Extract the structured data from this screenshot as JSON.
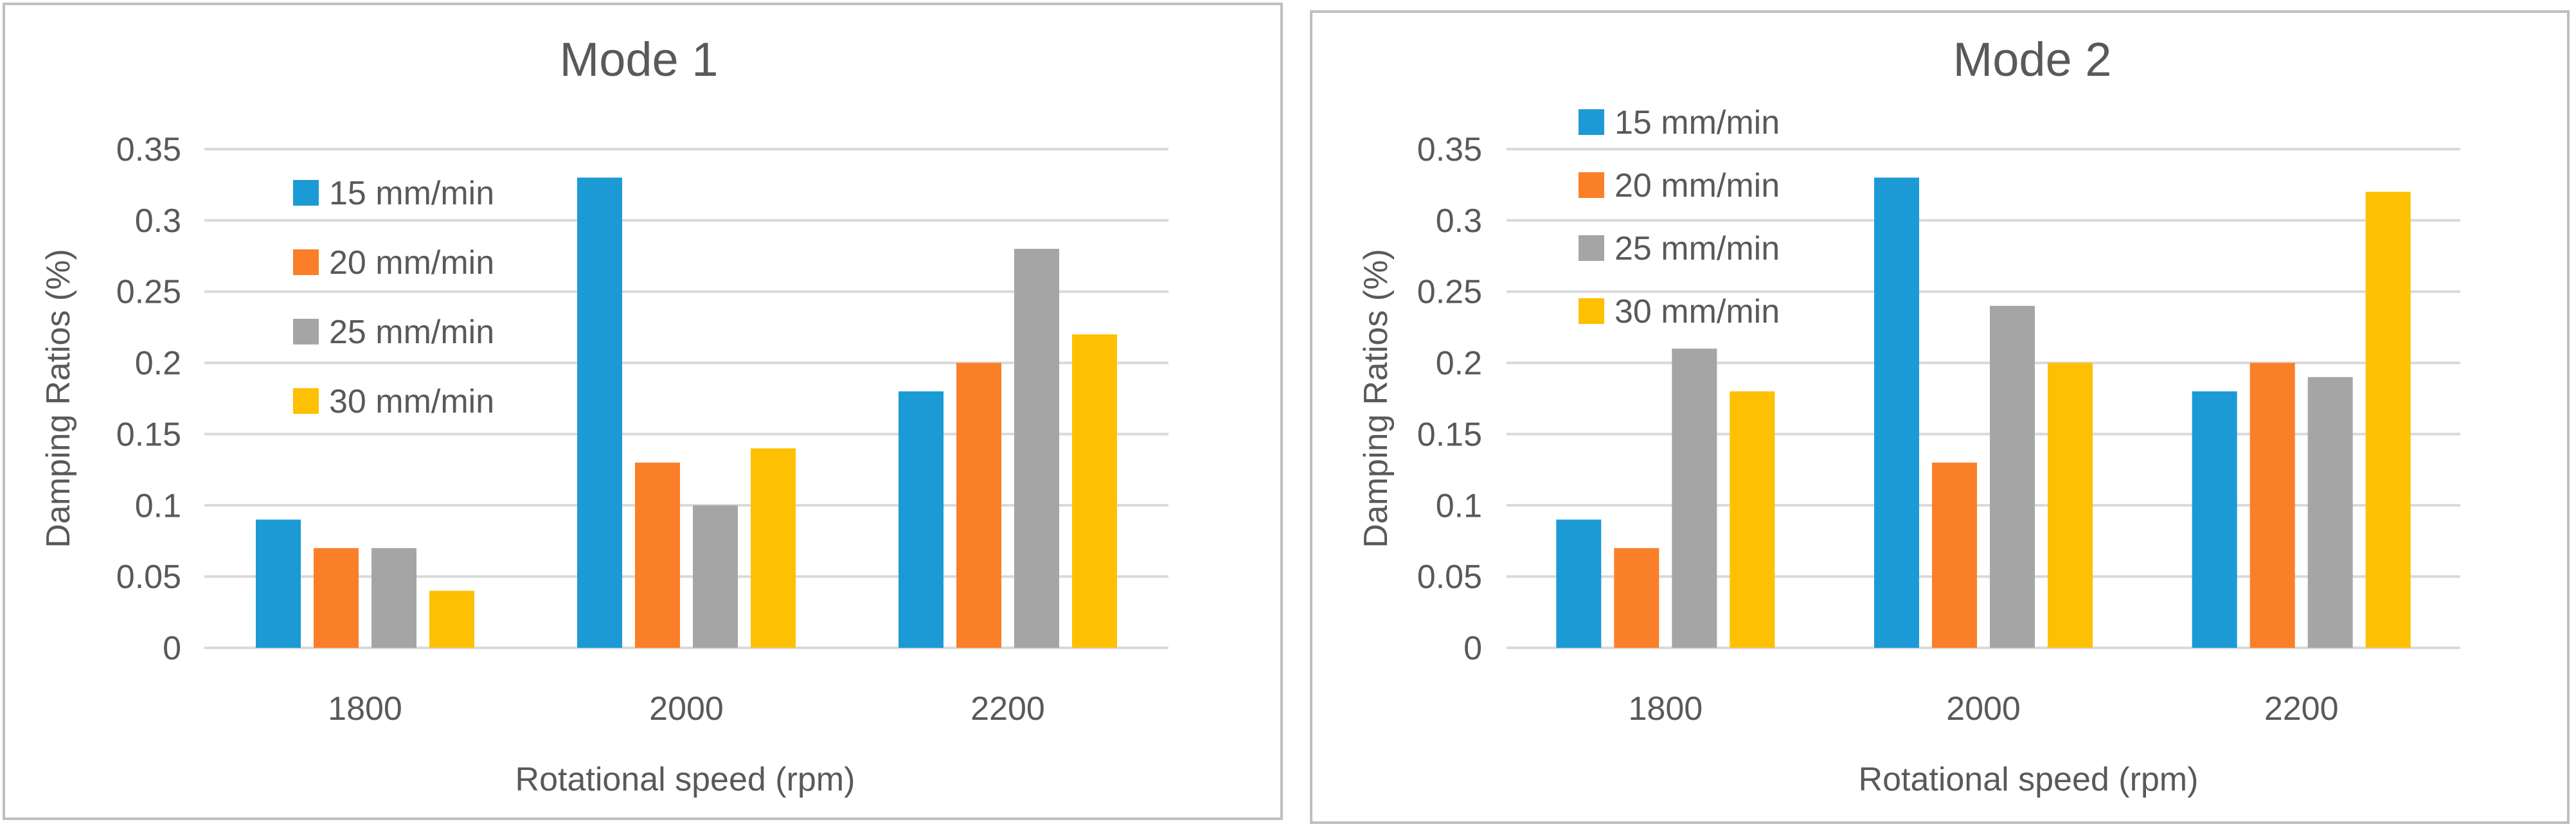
{
  "colors": {
    "series": [
      "#1C9AD6",
      "#FB7F28",
      "#A5A5A5",
      "#FEC002"
    ],
    "grid": "#D9D9D9",
    "text": "#595959",
    "border": "#BFBFBF"
  },
  "chart_data": [
    {
      "type": "bar",
      "title": "Mode 1",
      "xlabel": "Rotational speed (rpm)",
      "ylabel": "Damping Ratios (%)",
      "categories": [
        "1800",
        "2000",
        "2200"
      ],
      "ylim": [
        0,
        0.35
      ],
      "yticks": [
        0,
        0.05,
        0.1,
        0.15,
        0.2,
        0.25,
        0.3,
        0.35
      ],
      "ytick_labels": [
        "0",
        "0.05",
        "0.1",
        "0.15",
        "0.2",
        "0.25",
        "0.3",
        "0.35"
      ],
      "grid": true,
      "legend_position": "top-left",
      "series": [
        {
          "name": "15 mm/min",
          "values": [
            0.09,
            0.33,
            0.18
          ]
        },
        {
          "name": "20 mm/min",
          "values": [
            0.07,
            0.13,
            0.2
          ]
        },
        {
          "name": "25 mm/min",
          "values": [
            0.07,
            0.1,
            0.28
          ]
        },
        {
          "name": "30 mm/min",
          "values": [
            0.04,
            0.14,
            0.22
          ]
        }
      ]
    },
    {
      "type": "bar",
      "title": "Mode 2",
      "xlabel": "Rotational speed (rpm)",
      "ylabel": "Damping Ratios (%)",
      "categories": [
        "1800",
        "2000",
        "2200"
      ],
      "ylim": [
        0,
        0.35
      ],
      "yticks": [
        0,
        0.05,
        0.1,
        0.15,
        0.2,
        0.25,
        0.3,
        0.35
      ],
      "ytick_labels": [
        "0",
        "0.05",
        "0.1",
        "0.15",
        "0.2",
        "0.25",
        "0.3",
        "0.35"
      ],
      "grid": true,
      "legend_position": "top-left",
      "series": [
        {
          "name": "15 mm/min",
          "values": [
            0.09,
            0.33,
            0.18
          ]
        },
        {
          "name": "20 mm/min",
          "values": [
            0.07,
            0.13,
            0.2
          ]
        },
        {
          "name": "25 mm/min",
          "values": [
            0.21,
            0.24,
            0.19
          ]
        },
        {
          "name": "30 mm/min",
          "values": [
            0.18,
            0.2,
            0.32
          ]
        }
      ]
    }
  ]
}
